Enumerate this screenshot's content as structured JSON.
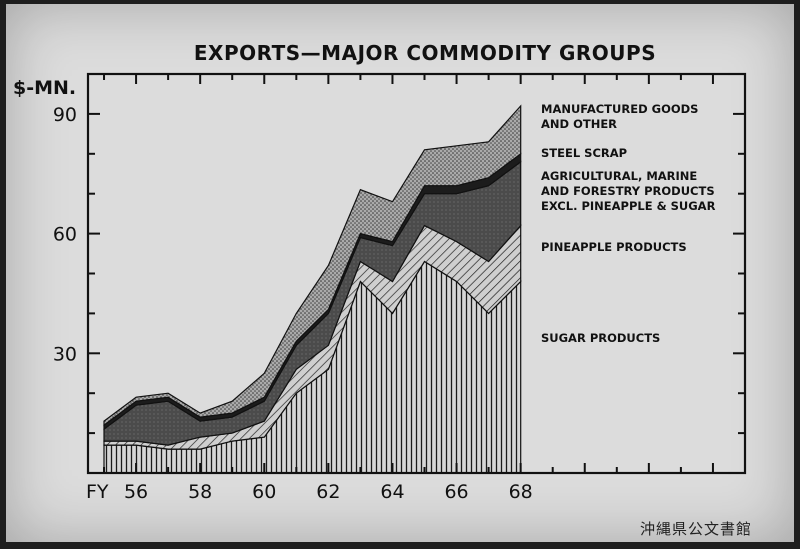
{
  "chart_data": {
    "type": "area",
    "stacked": true,
    "title": "EXPORTS—MAJOR COMMODITY GROUPS",
    "ylabel": "$-MN.",
    "x_prefix_label": "FY",
    "x": [
      55,
      56,
      57,
      58,
      59,
      60,
      61,
      62,
      63,
      64,
      65,
      66,
      67,
      68
    ],
    "xticks": [
      "56",
      "58",
      "60",
      "62",
      "64",
      "66",
      "68"
    ],
    "yticks": [
      "30",
      "60",
      "90"
    ],
    "ylim": [
      0,
      100
    ],
    "series": [
      {
        "name": "SUGAR PRODUCTS",
        "values": [
          7,
          7,
          6,
          6,
          8,
          9,
          20,
          26,
          48,
          40,
          53,
          48,
          40,
          48
        ],
        "color": "#c8c8c8",
        "pattern": "vertical"
      },
      {
        "name": "PINEAPPLE PRODUCTS",
        "values": [
          1,
          1,
          1,
          3,
          2,
          4,
          6,
          6,
          5,
          8,
          9,
          10,
          13,
          14
        ],
        "color": "#b8b8b8",
        "pattern": "diagonal"
      },
      {
        "name": "AGRICULTURAL, MARINE AND FORESTRY PRODUCTS EXCL. PINEAPPLE & SUGAR",
        "values": [
          3,
          9,
          11,
          4,
          4,
          5,
          6,
          8,
          6,
          9,
          8,
          12,
          19,
          16
        ],
        "color": "#4a4a4a",
        "pattern": "dark"
      },
      {
        "name": "STEEL SCRAP",
        "values": [
          1,
          1,
          1,
          1,
          1,
          1,
          1,
          1,
          1,
          1,
          2,
          2,
          2,
          2
        ],
        "color": "#1c1c1c",
        "pattern": "solid"
      },
      {
        "name": "MANUFACTURED GOODS AND OTHER",
        "values": [
          1,
          1,
          1,
          1,
          3,
          6,
          7,
          11,
          11,
          10,
          9,
          10,
          9,
          12
        ],
        "color": "#9a9a9a",
        "pattern": "dots"
      }
    ],
    "legend": [
      [
        "MANUFACTURED GOODS",
        "AND OTHER"
      ],
      [
        "STEEL SCRAP"
      ],
      [
        "AGRICULTURAL, MARINE",
        "AND FORESTRY PRODUCTS",
        "EXCL. PINEAPPLE & SUGAR"
      ],
      [
        "PINEAPPLE PRODUCTS"
      ],
      [
        "SUGAR PRODUCTS"
      ]
    ],
    "grid": false
  },
  "watermark": "沖縄県公文書館"
}
